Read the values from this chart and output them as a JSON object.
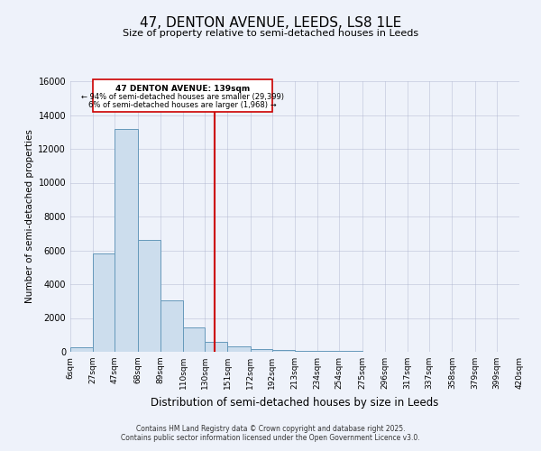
{
  "title": "47, DENTON AVENUE, LEEDS, LS8 1LE",
  "subtitle": "Size of property relative to semi-detached houses in Leeds",
  "xlabel": "Distribution of semi-detached houses by size in Leeds",
  "ylabel": "Number of semi-detached properties",
  "bin_labels": [
    "6sqm",
    "27sqm",
    "47sqm",
    "68sqm",
    "89sqm",
    "110sqm",
    "130sqm",
    "151sqm",
    "172sqm",
    "192sqm",
    "213sqm",
    "234sqm",
    "254sqm",
    "275sqm",
    "296sqm",
    "317sqm",
    "337sqm",
    "358sqm",
    "379sqm",
    "399sqm",
    "420sqm"
  ],
  "bin_edges": [
    6,
    27,
    47,
    68,
    89,
    110,
    130,
    151,
    172,
    192,
    213,
    234,
    254,
    275,
    296,
    317,
    337,
    358,
    379,
    399,
    420
  ],
  "bar_heights": [
    280,
    5800,
    13200,
    6600,
    3050,
    1450,
    600,
    300,
    150,
    100,
    80,
    50,
    30,
    0,
    0,
    0,
    0,
    0,
    0,
    0
  ],
  "bar_color": "#ccdded",
  "bar_edge_color": "#6699bb",
  "red_line_x": 139,
  "annotation_title": "47 DENTON AVENUE: 139sqm",
  "annotation_line1": "← 94% of semi-detached houses are smaller (29,399)",
  "annotation_line2": "6% of semi-detached houses are larger (1,968) →",
  "ylim": [
    0,
    16000
  ],
  "yticks": [
    0,
    2000,
    4000,
    6000,
    8000,
    10000,
    12000,
    14000,
    16000
  ],
  "background_color": "#eef2fa",
  "footer1": "Contains HM Land Registry data © Crown copyright and database right 2025.",
  "footer2": "Contains public sector information licensed under the Open Government Licence v3.0."
}
